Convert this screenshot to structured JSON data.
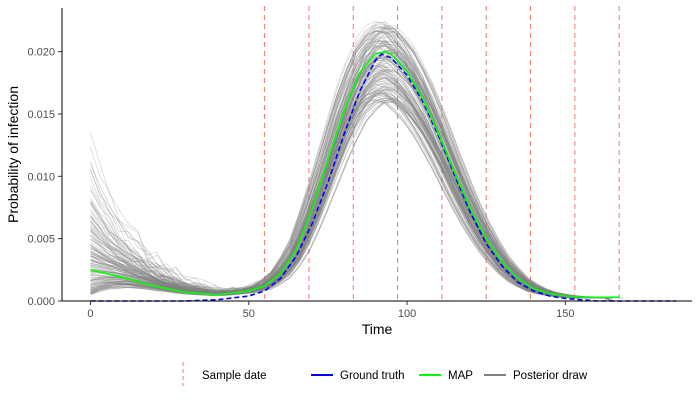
{
  "chart_data": {
    "type": "line",
    "title": "",
    "xlabel": "Time",
    "ylabel": "Probability of infection",
    "xlim": [
      -9,
      190
    ],
    "ylim": [
      0,
      0.0235
    ],
    "x_ticks": [
      0,
      50,
      100,
      150
    ],
    "x_tick_labels": [
      "0",
      "50",
      "100",
      "150"
    ],
    "y_ticks": [
      0,
      0.005,
      0.01,
      0.015,
      0.02
    ],
    "y_tick_labels": [
      "0.000",
      "0.005",
      "0.010",
      "0.015",
      "0.020"
    ],
    "grid": false,
    "legend_position": "bottom",
    "sample_dates": [
      55,
      69,
      83,
      97,
      111,
      125,
      139,
      153,
      167
    ],
    "series": [
      {
        "name": "Ground truth",
        "style": "dashed",
        "color": "#0000ff",
        "x": [
          0,
          10,
          20,
          30,
          40,
          50,
          55,
          60,
          65,
          70,
          75,
          80,
          85,
          90,
          92,
          95,
          100,
          105,
          110,
          115,
          120,
          125,
          130,
          135,
          140,
          145,
          150,
          155,
          160,
          165,
          170,
          175,
          180,
          185
        ],
        "values": [
          0.0,
          0.0,
          0.0,
          0.0,
          0.0001,
          0.0004,
          0.0008,
          0.0018,
          0.0036,
          0.0062,
          0.0095,
          0.0133,
          0.0168,
          0.0193,
          0.0198,
          0.0195,
          0.0181,
          0.016,
          0.0132,
          0.0101,
          0.0071,
          0.0046,
          0.0028,
          0.0015,
          0.0008,
          0.0004,
          0.0002,
          0.0001,
          0.0,
          0.0,
          0.0,
          0.0,
          0.0,
          0.0
        ]
      },
      {
        "name": "MAP",
        "style": "solid",
        "color": "#00ff00",
        "x": [
          0,
          10,
          20,
          30,
          40,
          50,
          55,
          60,
          65,
          70,
          75,
          80,
          85,
          90,
          93,
          95,
          100,
          105,
          110,
          115,
          120,
          125,
          130,
          135,
          140,
          145,
          150,
          155,
          160,
          167
        ],
        "values": [
          0.0025,
          0.0019,
          0.0012,
          0.0007,
          0.0005,
          0.0008,
          0.0012,
          0.0022,
          0.0041,
          0.0074,
          0.0113,
          0.0152,
          0.0183,
          0.0198,
          0.02,
          0.0198,
          0.0184,
          0.0162,
          0.0134,
          0.0103,
          0.0074,
          0.005,
          0.0031,
          0.0018,
          0.001,
          0.0006,
          0.0004,
          0.0003,
          0.0003,
          0.0003
        ]
      }
    ],
    "posterior_draws": {
      "name": "Posterior draw",
      "color": "#808080",
      "count": 150,
      "x_range": [
        0,
        167
      ]
    }
  },
  "legend": {
    "items": [
      {
        "label": "Sample date",
        "color": "#f8766d",
        "style": "vline-dashed"
      },
      {
        "label": "Ground truth",
        "color": "#0000ff",
        "style": "line"
      },
      {
        "label": "MAP",
        "color": "#00ff00",
        "style": "line"
      },
      {
        "label": "Posterior draw",
        "color": "#808080",
        "style": "line"
      }
    ]
  }
}
